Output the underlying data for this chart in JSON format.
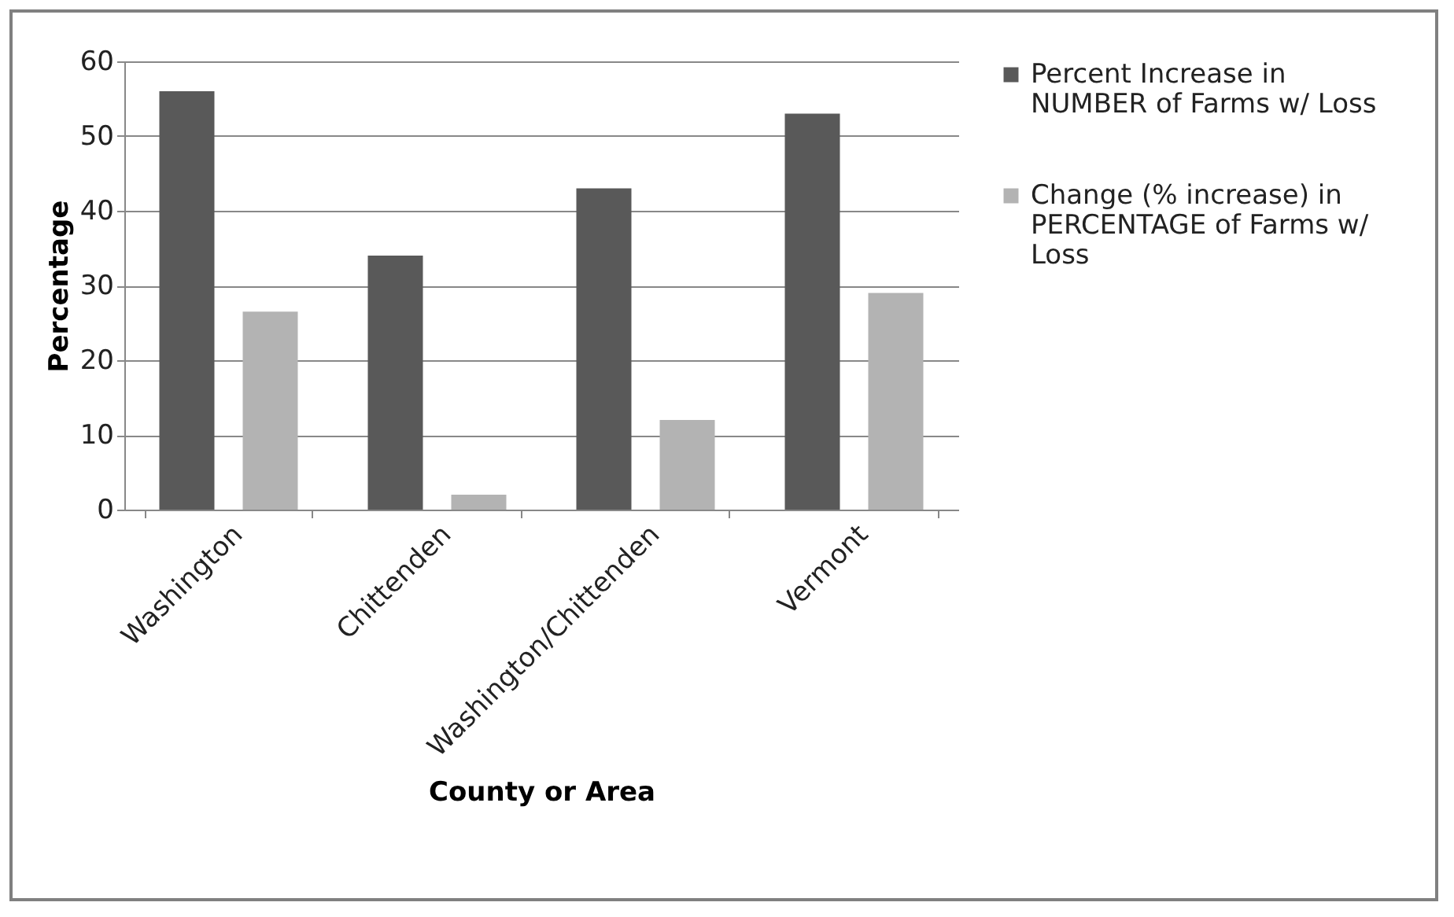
{
  "chart_data": {
    "type": "bar",
    "xlabel": "County or Area",
    "ylabel": "Percentage",
    "categories": [
      "Washington",
      "Chittenden",
      "Washington/Chittenden",
      "Vermont"
    ],
    "series": [
      {
        "name": "Percent Increase in NUMBER of Farms w/ Loss",
        "color": "#595959",
        "values": [
          56,
          34,
          43,
          53
        ]
      },
      {
        "name": "Change (% increase) in PERCENTAGE of Farms w/ Loss",
        "color": "#b3b3b3",
        "values": [
          26.5,
          2,
          12,
          29
        ]
      }
    ],
    "ylim": [
      0,
      60
    ],
    "yticks": [
      0,
      10,
      20,
      30,
      40,
      50,
      60
    ],
    "grid": "y",
    "legend": "right"
  }
}
